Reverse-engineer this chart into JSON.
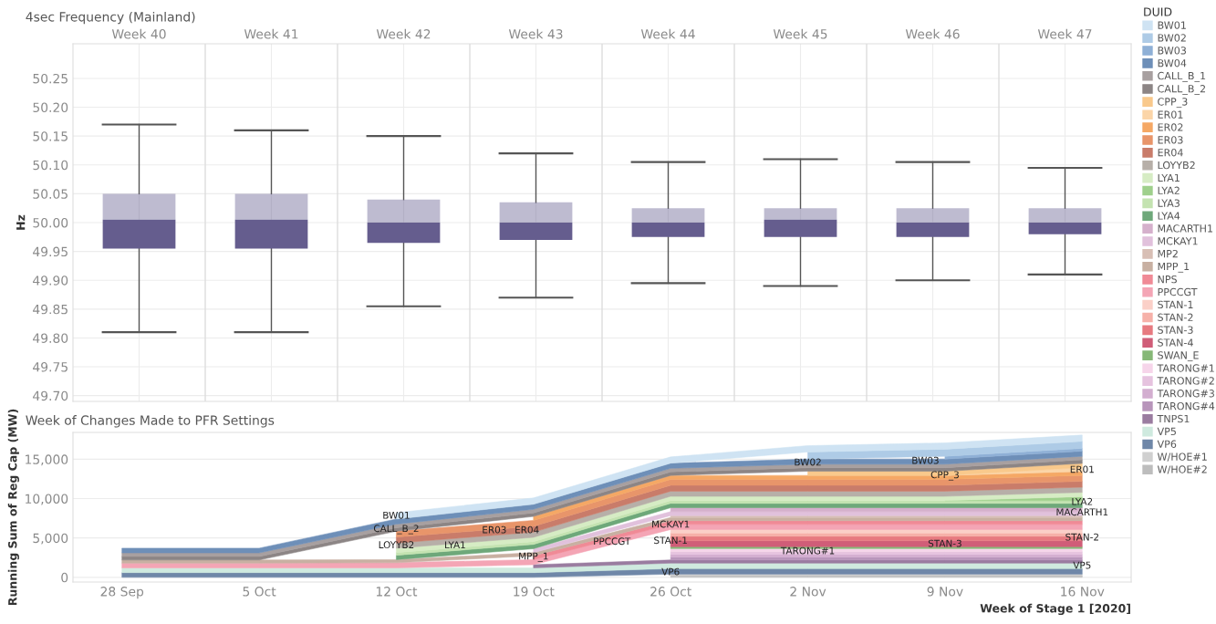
{
  "chart_data": [
    {
      "type": "box",
      "title": "4sec Frequency (Mainland)",
      "ylabel": "Hz",
      "categories": [
        "Week 40",
        "Week 41",
        "Week 42",
        "Week 43",
        "Week 44",
        "Week 45",
        "Week 46",
        "Week 47"
      ],
      "series": [
        {
          "color": "#655d8e",
          "boxes": [
            {
              "low": 49.81,
              "q1": 49.955,
              "median": 50.005,
              "q3": 50.05,
              "high": 50.17
            },
            {
              "low": 49.81,
              "q1": 49.955,
              "median": 50.005,
              "q3": 50.05,
              "high": 50.16
            },
            {
              "low": 49.855,
              "q1": 49.965,
              "median": 50.0,
              "q3": 50.04,
              "high": 50.15
            },
            {
              "low": 49.87,
              "q1": 49.97,
              "median": 50.0,
              "q3": 50.035,
              "high": 50.12
            },
            {
              "low": 49.895,
              "q1": 49.975,
              "median": 50.0,
              "q3": 50.025,
              "high": 50.105
            },
            {
              "low": 49.89,
              "q1": 49.975,
              "median": 50.005,
              "q3": 50.025,
              "high": 50.11
            },
            {
              "low": 49.9,
              "q1": 49.975,
              "median": 50.0,
              "q3": 50.025,
              "high": 50.105
            },
            {
              "low": 49.91,
              "q1": 49.98,
              "median": 50.0,
              "q3": 50.025,
              "high": 50.095
            }
          ]
        }
      ],
      "ylim": [
        49.69,
        50.31
      ],
      "yticks": [
        {
          "value": 49.7,
          "label": "49.70"
        },
        {
          "value": 49.75,
          "label": "49.75"
        },
        {
          "value": 49.8,
          "label": "49.80"
        },
        {
          "value": 49.85,
          "label": "49.85"
        },
        {
          "value": 49.9,
          "label": "49.90"
        },
        {
          "value": 49.95,
          "label": "49.95"
        },
        {
          "value": 50.0,
          "label": "50.00"
        },
        {
          "value": 50.05,
          "label": "50.05"
        },
        {
          "value": 50.1,
          "label": "50.10"
        },
        {
          "value": 50.15,
          "label": "50.15"
        },
        {
          "value": 50.2,
          "label": "50.20"
        },
        {
          "value": 50.25,
          "label": "50.25"
        }
      ],
      "grid": true
    },
    {
      "type": "area",
      "stacked": true,
      "title": "Week of Changes Made to PFR Settings",
      "xlabel": "Week of Stage 1 [2020]",
      "ylabel": "Running Sum of Reg Cap (MW)",
      "legend_title": "DUID",
      "legend": "right",
      "grid": "y",
      "x": [
        "2020-09-28",
        "2020-10-05",
        "2020-10-12",
        "2020-10-19",
        "2020-10-26",
        "2020-11-02",
        "2020-11-09",
        "2020-11-16"
      ],
      "xlim": [
        "2020-09-25T12:00",
        "2020-11-18T12:00"
      ],
      "xticks": [
        {
          "value": "2020-09-28",
          "label": "28 Sep"
        },
        {
          "value": "2020-10-05",
          "label": "5 Oct"
        },
        {
          "value": "2020-10-12",
          "label": "12 Oct"
        },
        {
          "value": "2020-10-19",
          "label": "19 Oct"
        },
        {
          "value": "2020-10-26",
          "label": "26 Oct"
        },
        {
          "value": "2020-11-02",
          "label": "2 Nov"
        },
        {
          "value": "2020-11-09",
          "label": "9 Nov"
        },
        {
          "value": "2020-11-16",
          "label": "16 Nov"
        }
      ],
      "ylim": [
        -600,
        18400
      ],
      "yticks": [
        {
          "value": 0,
          "label": "0"
        },
        {
          "value": 5000,
          "label": "5,000"
        },
        {
          "value": 10000,
          "label": "10,000"
        },
        {
          "value": 15000,
          "label": "15,000"
        }
      ],
      "series": [
        {
          "name": "W/HOE#2",
          "color": "#bdbdbd",
          "values": [
            null,
            null,
            null,
            null,
            200,
            200,
            200,
            200
          ]
        },
        {
          "name": "W/HOE#1",
          "color": "#d0d0d0",
          "values": [
            null,
            null,
            null,
            null,
            200,
            200,
            200,
            200
          ]
        },
        {
          "name": "VP6",
          "color": "#6f87a8",
          "values": [
            600,
            600,
            600,
            600,
            700,
            700,
            700,
            700
          ]
        },
        {
          "name": "VP5",
          "color": "#cfeadf",
          "values": [
            600,
            600,
            600,
            600,
            700,
            700,
            700,
            700
          ]
        },
        {
          "name": "TNPS1",
          "color": "#9a7ca0",
          "values": [
            null,
            null,
            null,
            400,
            400,
            400,
            400,
            400
          ]
        },
        {
          "name": "TARONG#4",
          "color": "#b895bb",
          "values": [
            null,
            null,
            null,
            null,
            350,
            350,
            350,
            350
          ]
        },
        {
          "name": "TARONG#3",
          "color": "#d3aed0",
          "values": [
            null,
            null,
            null,
            null,
            350,
            350,
            350,
            350
          ]
        },
        {
          "name": "TARONG#2",
          "color": "#e6c3df",
          "values": [
            null,
            null,
            null,
            null,
            350,
            350,
            350,
            350
          ]
        },
        {
          "name": "TARONG#1",
          "color": "#f6d5ea",
          "values": [
            null,
            null,
            null,
            null,
            400,
            400,
            400,
            400
          ]
        },
        {
          "name": "SWAN_E",
          "color": "#86b877",
          "values": [
            null,
            null,
            null,
            null,
            240,
            240,
            240,
            240
          ]
        },
        {
          "name": "STAN-4",
          "color": "#d05d78",
          "values": [
            null,
            null,
            null,
            null,
            750,
            750,
            750,
            750
          ]
        },
        {
          "name": "STAN-3",
          "color": "#e77a80",
          "values": [
            null,
            null,
            null,
            null,
            580,
            580,
            580,
            580
          ]
        },
        {
          "name": "STAN-2",
          "color": "#f6b1a9",
          "values": [
            null,
            null,
            null,
            null,
            400,
            400,
            400,
            400
          ]
        },
        {
          "name": "STAN-1",
          "color": "#fbd0c8",
          "values": [
            null,
            null,
            null,
            null,
            450,
            450,
            450,
            450
          ]
        },
        {
          "name": "PPCCGT",
          "color": "#f4a5b5",
          "values": [
            600,
            600,
            650,
            650,
            650,
            650,
            650,
            650
          ]
        },
        {
          "name": "NPS",
          "color": "#f08a96",
          "values": [
            null,
            null,
            null,
            480,
            480,
            480,
            480,
            480
          ]
        },
        {
          "name": "MPP_1",
          "color": "#c8b0a2",
          "values": [
            400,
            400,
            400,
            400,
            400,
            400,
            400,
            400
          ]
        },
        {
          "name": "MP2",
          "color": "#d8bfb5",
          "values": [
            null,
            null,
            null,
            null,
            240,
            240,
            240,
            240
          ]
        },
        {
          "name": "MCKAY1",
          "color": "#e1c1dc",
          "values": [
            null,
            null,
            null,
            500,
            500,
            500,
            500,
            500
          ]
        },
        {
          "name": "MACARTH1",
          "color": "#d5b0cc",
          "values": [
            null,
            null,
            null,
            null,
            500,
            500,
            500,
            500
          ]
        },
        {
          "name": "LYA4",
          "color": "#6ea87a",
          "values": [
            null,
            null,
            550,
            550,
            550,
            550,
            550,
            550
          ]
        },
        {
          "name": "LYA3",
          "color": "#c4e3b1",
          "values": [
            null,
            null,
            350,
            350,
            350,
            350,
            350,
            350
          ]
        },
        {
          "name": "LYA2",
          "color": "#9fd08c",
          "values": [
            null,
            null,
            null,
            null,
            null,
            null,
            0,
            500
          ]
        },
        {
          "name": "LYA1",
          "color": "#d6ecc4",
          "values": [
            null,
            null,
            550,
            550,
            550,
            550,
            550,
            550
          ]
        },
        {
          "name": "LOYYB2",
          "color": "#b7afa8",
          "values": [
            null,
            null,
            650,
            650,
            650,
            650,
            650,
            650
          ]
        },
        {
          "name": "ER04",
          "color": "#c97c6a",
          "values": [
            null,
            null,
            750,
            750,
            750,
            750,
            750,
            750
          ]
        },
        {
          "name": "ER03",
          "color": "#e8956a",
          "values": [
            null,
            null,
            750,
            750,
            750,
            750,
            750,
            750
          ]
        },
        {
          "name": "ER02",
          "color": "#f5a865",
          "values": [
            null,
            null,
            null,
            500,
            500,
            500,
            500,
            500
          ]
        },
        {
          "name": "ER01",
          "color": "#fbd5a8",
          "values": [
            null,
            null,
            null,
            null,
            null,
            null,
            0,
            500
          ]
        },
        {
          "name": "CPP_3",
          "color": "#f9c98c",
          "values": [
            null,
            null,
            null,
            null,
            null,
            530,
            530,
            530
          ]
        },
        {
          "name": "CALL_B_2",
          "color": "#8c8585",
          "values": [
            450,
            450,
            450,
            450,
            450,
            450,
            450,
            450
          ]
        },
        {
          "name": "CALL_B_1",
          "color": "#a8a0a0",
          "values": [
            450,
            450,
            450,
            450,
            450,
            450,
            450,
            450
          ]
        },
        {
          "name": "BW04",
          "color": "#6e8fb8",
          "values": [
            600,
            600,
            650,
            650,
            650,
            650,
            650,
            650
          ]
        },
        {
          "name": "BW03",
          "color": "#8fb0d6",
          "values": [
            null,
            null,
            null,
            null,
            null,
            null,
            350,
            350
          ]
        },
        {
          "name": "BW02",
          "color": "#aecbe6",
          "values": [
            null,
            null,
            null,
            null,
            null,
            900,
            900,
            900
          ]
        },
        {
          "name": "BW01",
          "color": "#cfe3f3",
          "values": [
            null,
            null,
            800,
            800,
            800,
            800,
            800,
            800
          ]
        }
      ],
      "annotations": [
        {
          "text": "BW01",
          "x": "2020-10-12",
          "y": 7780
        },
        {
          "text": "CALL_B_2",
          "x": "2020-10-12",
          "y": 6075
        },
        {
          "text": "LOYYB2",
          "x": "2020-10-12",
          "y": 4025
        },
        {
          "text": "LYA1",
          "x": "2020-10-15",
          "y": 4016
        },
        {
          "text": "ER03",
          "x": "2020-10-17",
          "y": 5940
        },
        {
          "text": "ER04",
          "x": "2020-10-18T16:00",
          "y": 5940
        },
        {
          "text": "MPP_1",
          "x": "2020-10-19",
          "y": 2560
        },
        {
          "text": "MCKAY1",
          "x": "2020-10-26",
          "y": 6650
        },
        {
          "text": "STAN-1",
          "x": "2020-10-26",
          "y": 4600
        },
        {
          "text": "PPCCGT",
          "x": "2020-10-23",
          "y": 4480
        },
        {
          "text": "VP6",
          "x": "2020-10-26",
          "y": 610
        },
        {
          "text": "BW02",
          "x": "2020-11-02",
          "y": 14530
        },
        {
          "text": "TARONG#1",
          "x": "2020-11-02",
          "y": 3280
        },
        {
          "text": "BW03",
          "x": "2020-11-08",
          "y": 14740
        },
        {
          "text": "CPP_3",
          "x": "2020-11-09",
          "y": 12900
        },
        {
          "text": "STAN-3",
          "x": "2020-11-09",
          "y": 4200
        },
        {
          "text": "ER01",
          "x": "2020-11-16",
          "y": 13610
        },
        {
          "text": "LYA2",
          "x": "2020-11-16",
          "y": 9520
        },
        {
          "text": "MACARTH1",
          "x": "2020-11-16",
          "y": 8190
        },
        {
          "text": "STAN-2",
          "x": "2020-11-16",
          "y": 5015
        },
        {
          "text": "VP5",
          "x": "2020-11-16",
          "y": 1430
        }
      ]
    }
  ]
}
